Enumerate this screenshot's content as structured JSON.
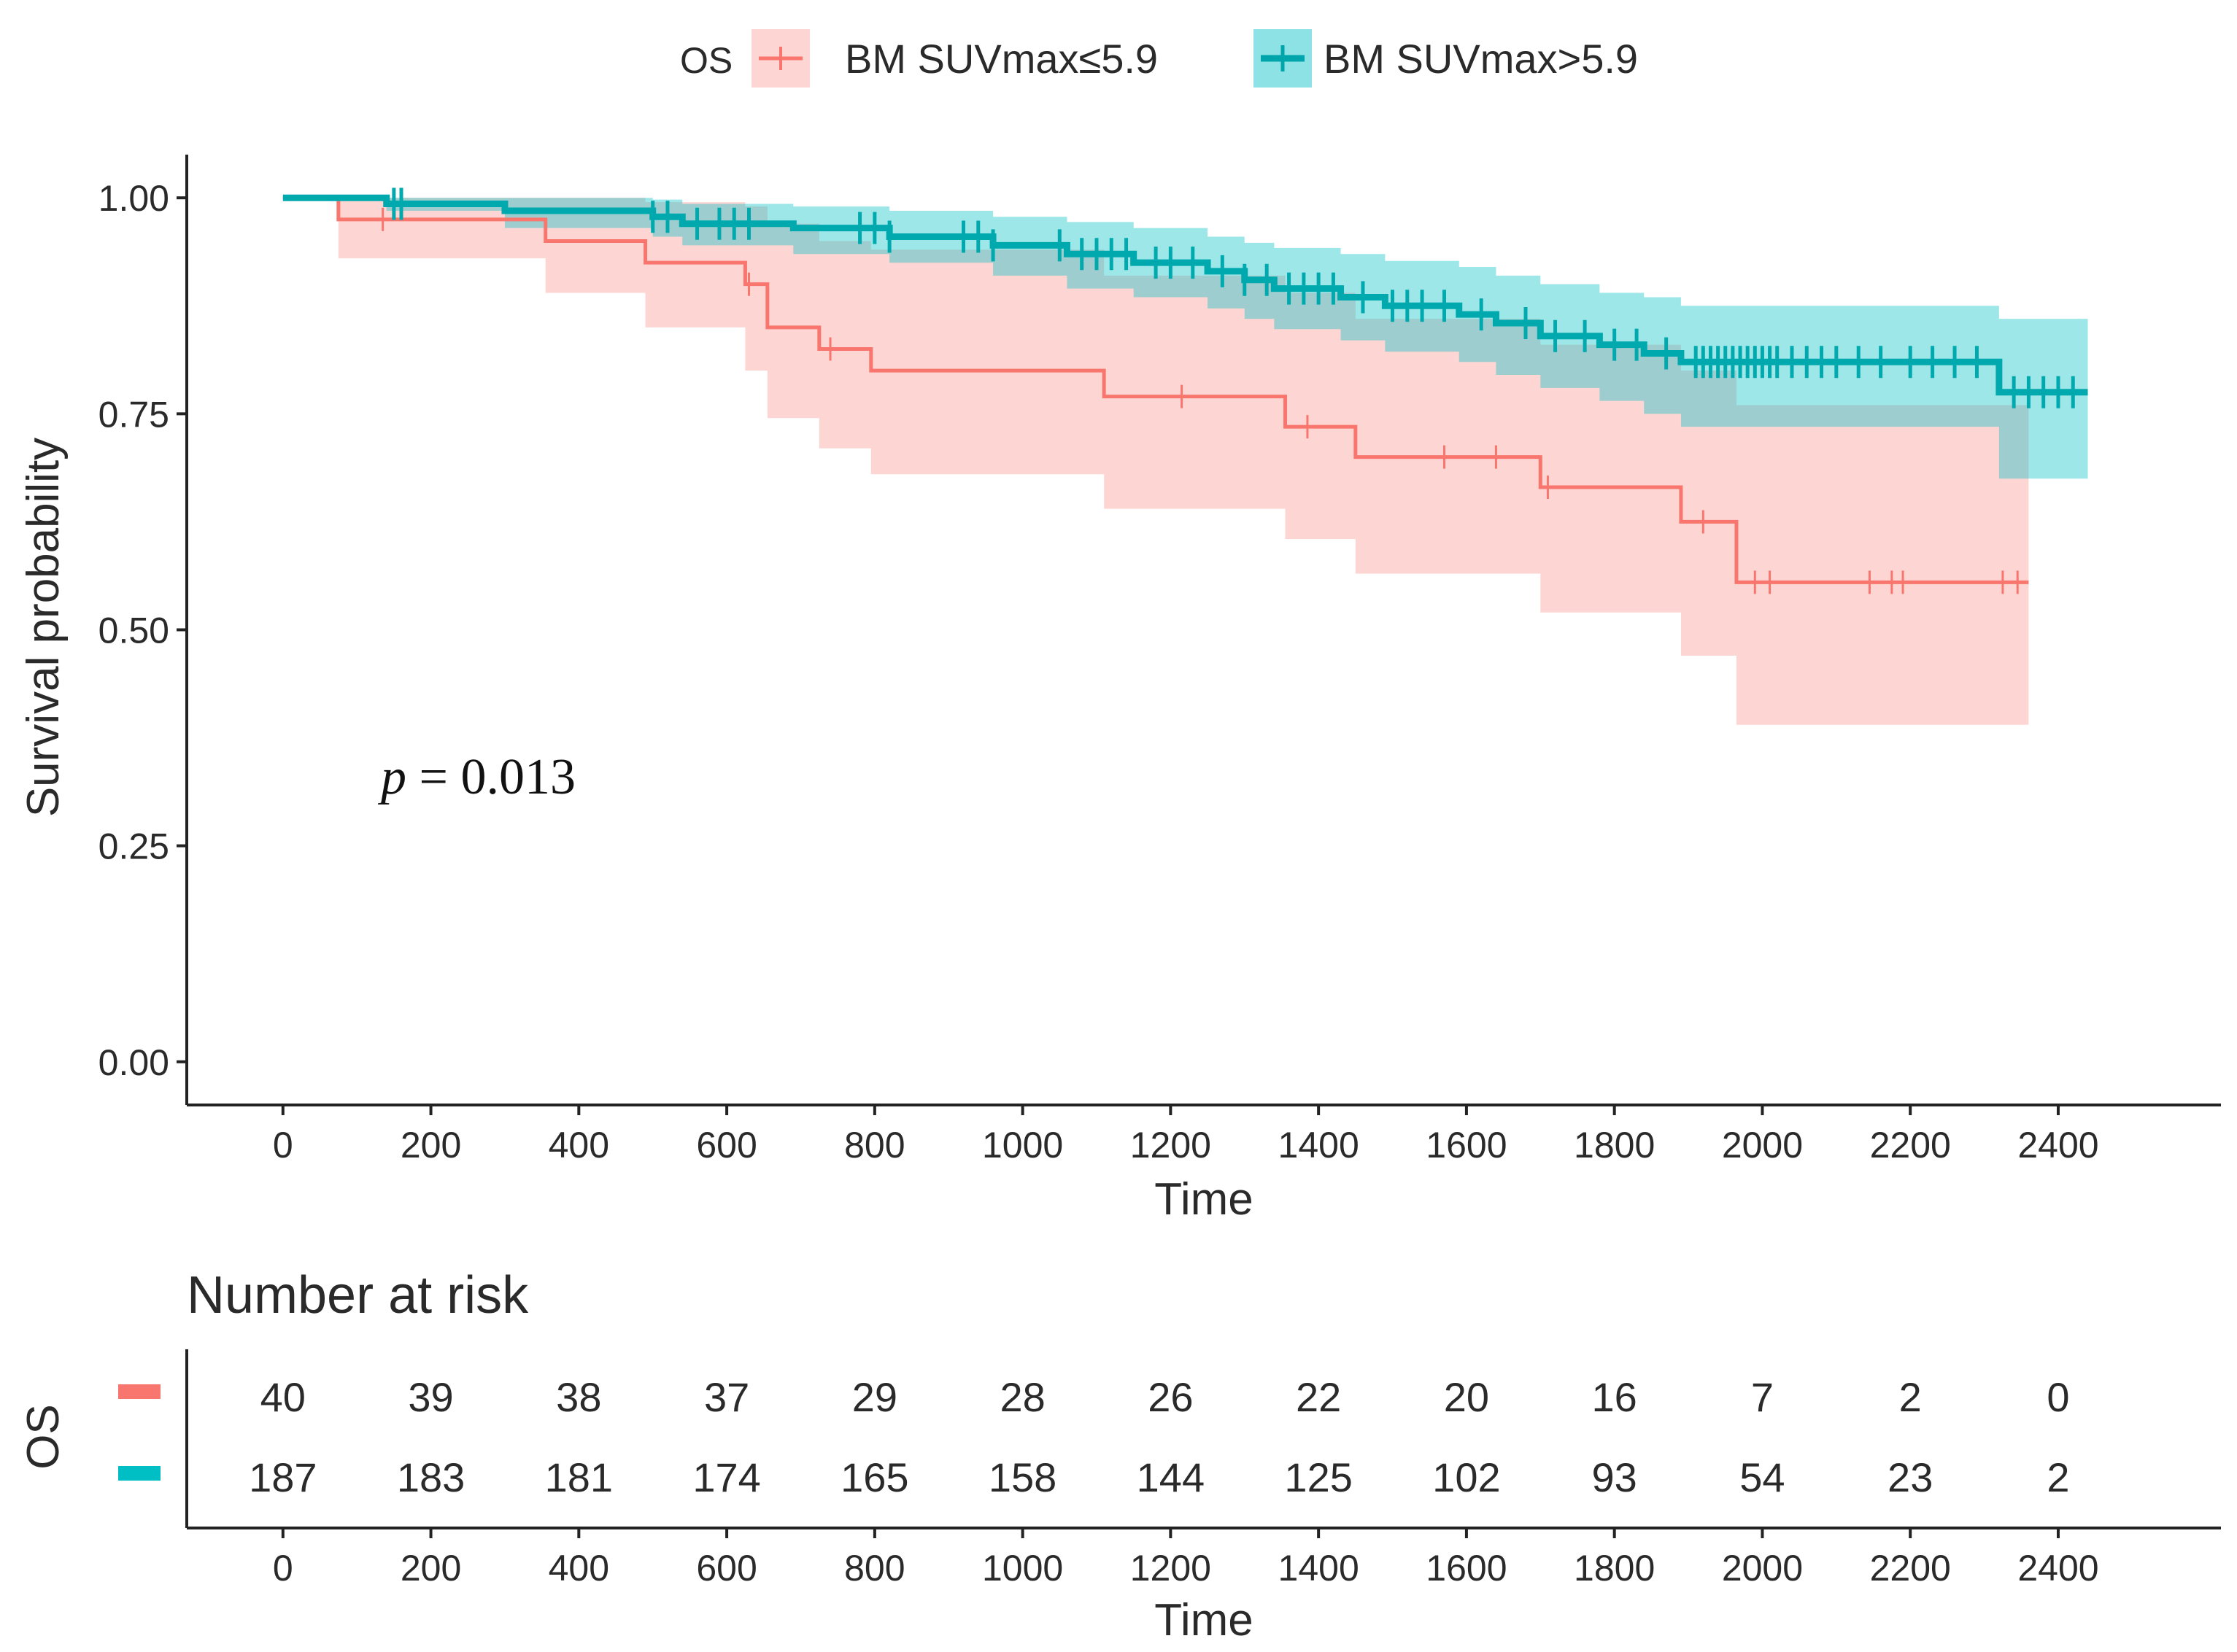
{
  "chart_data": {
    "type": "line",
    "subtype": "kaplan-meier",
    "legend": {
      "title": "OS",
      "entries": [
        "BM SUVmax≤5.9",
        "BM SUVmax>5.9"
      ]
    },
    "xlabel": "Time",
    "ylabel": "Survival probability",
    "xlim": [
      -130,
      2620
    ],
    "ylim": [
      -0.05,
      1.05
    ],
    "xticks": [
      0,
      200,
      400,
      600,
      800,
      1000,
      1200,
      1400,
      1600,
      1800,
      2000,
      2200,
      2400
    ],
    "xtick_labels": [
      "0",
      "200",
      "400",
      "600",
      "800",
      "1000",
      "1200",
      "1400",
      "1600",
      "1800",
      "2000",
      "2200",
      "2400"
    ],
    "yticks": [
      0,
      0.25,
      0.5,
      0.75,
      1.0
    ],
    "ytick_labels": [
      "0.00",
      "0.25",
      "0.50",
      "0.75",
      "1.00"
    ],
    "annotation": {
      "italic": "p",
      "text": " = 0.013"
    },
    "series": [
      {
        "name": "BM SUVmax≤5.9",
        "color": "#F8766D",
        "band_color": "#F8766D",
        "steps": [
          [
            0,
            1.0
          ],
          [
            75,
            0.975
          ],
          [
            355,
            0.95
          ],
          [
            490,
            0.925
          ],
          [
            625,
            0.9
          ],
          [
            655,
            0.85
          ],
          [
            725,
            0.825
          ],
          [
            795,
            0.8
          ],
          [
            1110,
            0.77
          ],
          [
            1355,
            0.735
          ],
          [
            1450,
            0.7
          ],
          [
            1700,
            0.665
          ],
          [
            1890,
            0.625
          ],
          [
            1965,
            0.555
          ]
        ],
        "end_time": 2360,
        "upper": [
          [
            0,
            1.0
          ],
          [
            75,
            1.0
          ],
          [
            355,
            1.0
          ],
          [
            490,
            0.995
          ],
          [
            625,
            0.99
          ],
          [
            655,
            0.97
          ],
          [
            725,
            0.95
          ],
          [
            795,
            0.94
          ],
          [
            1110,
            0.91
          ],
          [
            1355,
            0.89
          ],
          [
            1450,
            0.86
          ],
          [
            1700,
            0.83
          ],
          [
            1890,
            0.8
          ],
          [
            1965,
            0.76
          ]
        ],
        "lower": [
          [
            0,
            1.0
          ],
          [
            75,
            0.93
          ],
          [
            355,
            0.89
          ],
          [
            490,
            0.85
          ],
          [
            625,
            0.8
          ],
          [
            655,
            0.745
          ],
          [
            725,
            0.71
          ],
          [
            795,
            0.68
          ],
          [
            1110,
            0.64
          ],
          [
            1355,
            0.605
          ],
          [
            1450,
            0.565
          ],
          [
            1700,
            0.52
          ],
          [
            1890,
            0.47
          ],
          [
            1965,
            0.39
          ]
        ],
        "censor_times": [
          135,
          630,
          740,
          1215,
          1385,
          1570,
          1640,
          1710,
          1920,
          1990,
          2010,
          2145,
          2175,
          2190,
          2325,
          2345
        ],
        "risk_table": [
          40,
          39,
          38,
          37,
          29,
          28,
          26,
          22,
          20,
          16,
          7,
          2,
          0
        ]
      },
      {
        "name": "BM SUVmax>5.9",
        "color": "#00BFC4",
        "band_color": "#00BFC4",
        "steps": [
          [
            0,
            1.0
          ],
          [
            140,
            0.993
          ],
          [
            300,
            0.985
          ],
          [
            500,
            0.978
          ],
          [
            540,
            0.97
          ],
          [
            690,
            0.965
          ],
          [
            820,
            0.955
          ],
          [
            960,
            0.945
          ],
          [
            1060,
            0.935
          ],
          [
            1150,
            0.925
          ],
          [
            1250,
            0.915
          ],
          [
            1300,
            0.905
          ],
          [
            1340,
            0.895
          ],
          [
            1430,
            0.885
          ],
          [
            1490,
            0.875
          ],
          [
            1590,
            0.865
          ],
          [
            1640,
            0.855
          ],
          [
            1700,
            0.84
          ],
          [
            1780,
            0.83
          ],
          [
            1840,
            0.82
          ],
          [
            1890,
            0.81
          ],
          [
            2320,
            0.775
          ]
        ],
        "end_time": 2440,
        "upper": [
          [
            0,
            1.0
          ],
          [
            140,
            1.0
          ],
          [
            300,
            1.0
          ],
          [
            500,
            0.998
          ],
          [
            540,
            0.993
          ],
          [
            690,
            0.99
          ],
          [
            820,
            0.985
          ],
          [
            960,
            0.978
          ],
          [
            1060,
            0.972
          ],
          [
            1150,
            0.965
          ],
          [
            1250,
            0.955
          ],
          [
            1300,
            0.948
          ],
          [
            1340,
            0.942
          ],
          [
            1430,
            0.935
          ],
          [
            1490,
            0.927
          ],
          [
            1590,
            0.92
          ],
          [
            1640,
            0.91
          ],
          [
            1700,
            0.9
          ],
          [
            1780,
            0.89
          ],
          [
            1840,
            0.885
          ],
          [
            1890,
            0.875
          ],
          [
            2320,
            0.86
          ]
        ],
        "lower": [
          [
            0,
            1.0
          ],
          [
            140,
            0.985
          ],
          [
            300,
            0.965
          ],
          [
            500,
            0.955
          ],
          [
            540,
            0.945
          ],
          [
            690,
            0.935
          ],
          [
            820,
            0.925
          ],
          [
            960,
            0.91
          ],
          [
            1060,
            0.895
          ],
          [
            1150,
            0.885
          ],
          [
            1250,
            0.872
          ],
          [
            1300,
            0.86
          ],
          [
            1340,
            0.848
          ],
          [
            1430,
            0.835
          ],
          [
            1490,
            0.822
          ],
          [
            1590,
            0.81
          ],
          [
            1640,
            0.795
          ],
          [
            1700,
            0.78
          ],
          [
            1780,
            0.765
          ],
          [
            1840,
            0.75
          ],
          [
            1890,
            0.735
          ],
          [
            2320,
            0.675
          ]
        ],
        "censor_times": [
          150,
          160,
          500,
          520,
          560,
          590,
          610,
          630,
          780,
          800,
          820,
          920,
          940,
          960,
          1050,
          1080,
          1100,
          1120,
          1140,
          1180,
          1200,
          1230,
          1270,
          1300,
          1330,
          1360,
          1380,
          1400,
          1420,
          1460,
          1500,
          1520,
          1540,
          1570,
          1620,
          1680,
          1720,
          1760,
          1800,
          1830,
          1870,
          1910,
          1920,
          1930,
          1940,
          1950,
          1960,
          1970,
          1980,
          1990,
          2000,
          2010,
          2020,
          2040,
          2060,
          2080,
          2100,
          2130,
          2160,
          2200,
          2230,
          2260,
          2290,
          2340,
          2360,
          2380,
          2400,
          2420
        ],
        "risk_table": [
          187,
          183,
          181,
          174,
          165,
          158,
          144,
          125,
          102,
          93,
          54,
          23,
          2
        ]
      }
    ]
  },
  "risk_table": {
    "title": "Number at risk",
    "ylabel": "OS",
    "xlabel": "Time",
    "xticks": [
      0,
      200,
      400,
      600,
      800,
      1000,
      1200,
      1400,
      1600,
      1800,
      2000,
      2200,
      2400
    ],
    "xtick_labels": [
      "0",
      "200",
      "400",
      "600",
      "800",
      "1000",
      "1200",
      "1400",
      "1600",
      "1800",
      "2000",
      "2200",
      "2400"
    ]
  }
}
